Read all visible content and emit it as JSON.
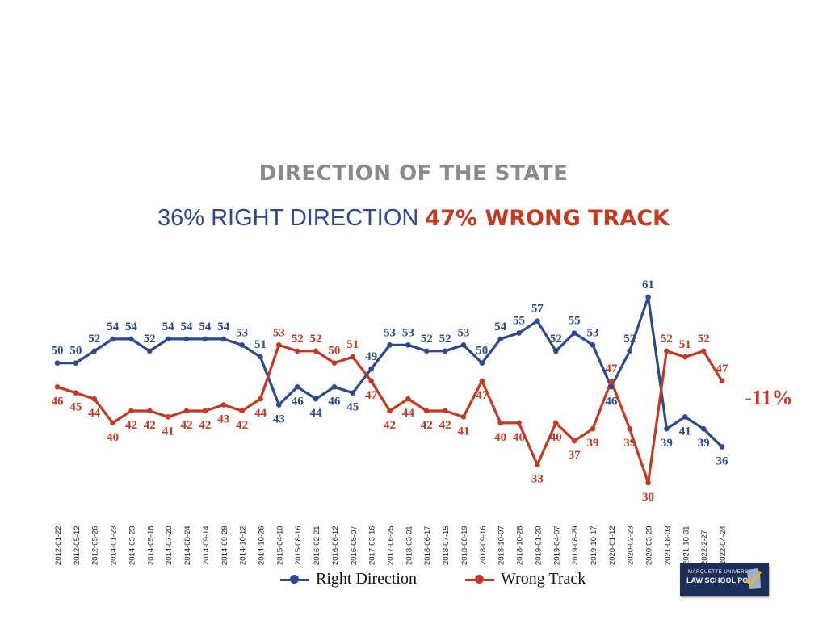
{
  "title": "DIRECTION OF THE STATE",
  "subtitle": {
    "right_text": "36% RIGHT DIRECTION",
    "wrong_text": "47% WRONG TRACK"
  },
  "difference_label": "-11%",
  "logo": {
    "line1": "MARQUETTE UNIVERSITY",
    "line2": "LAW SCHOOL POLL"
  },
  "colors": {
    "right": "#2e4a8c",
    "wrong": "#c33a23",
    "title": "#8a8a8a"
  },
  "chart_data": {
    "type": "line",
    "title": "DIRECTION OF THE STATE",
    "xlabel": "",
    "ylabel": "",
    "ylim": [
      30,
      61
    ],
    "grid": false,
    "legend": "bottom-center",
    "categories": [
      "2012-01-22",
      "2012-05-12",
      "2012-05-26",
      "2014-01-23",
      "2014-03-23",
      "2014-05-18",
      "2014-07-20",
      "2014-08-24",
      "2014-09-14",
      "2014-09-28",
      "2014-10-12",
      "2014-10-26",
      "2015-04-10",
      "2015-08-16",
      "2016-02-21",
      "2016-06-12",
      "2016-08-07",
      "2017-03-16",
      "2017-06-25",
      "2018-03-01",
      "2018-06-17",
      "2018-07-15",
      "2018-08-19",
      "2018-09-16",
      "2018-10-07",
      "2018-10-28",
      "2019-01-20",
      "2019-04-07",
      "2019-08-29",
      "2019-10-17",
      "2020-01-12",
      "2020-02-23",
      "2020-03-29",
      "2021-08-03",
      "2021-10-31",
      "2022-2-27",
      "2022-04-24"
    ],
    "series": [
      {
        "name": "Right Direction",
        "values": [
          50,
          50,
          52,
          54,
          54,
          52,
          54,
          54,
          54,
          54,
          53,
          51,
          43,
          46,
          44,
          46,
          45,
          49,
          53,
          53,
          52,
          52,
          53,
          50,
          54,
          55,
          57,
          52,
          55,
          53,
          46,
          52,
          61,
          39,
          41,
          39,
          36
        ]
      },
      {
        "name": "Wrong Track",
        "values": [
          46,
          45,
          44,
          40,
          42,
          42,
          41,
          42,
          42,
          43,
          42,
          44,
          53,
          52,
          52,
          50,
          51,
          47,
          42,
          44,
          42,
          42,
          41,
          47,
          40,
          40,
          33,
          40,
          37,
          39,
          47,
          39,
          30,
          52,
          51,
          52,
          47
        ]
      }
    ]
  }
}
